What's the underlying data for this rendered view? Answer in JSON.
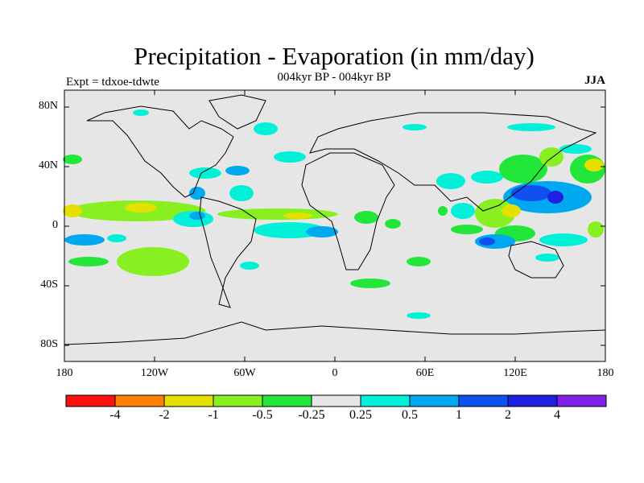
{
  "header": {
    "title": "Precipitation - Evaporation (in mm/day)",
    "subtitle": "004kyr BP - 004kyr BP",
    "expt": "Expt = tdxoe-tdwte",
    "season": "JJA"
  },
  "map": {
    "background": "#e6e6e6",
    "coastline_color": "#000000",
    "lat_labels": [
      "80N",
      "40N",
      "0",
      "40S",
      "80S"
    ],
    "lon_labels": [
      "180",
      "120W",
      "60W",
      "0",
      "60E",
      "120E",
      "180"
    ]
  },
  "colorbar": {
    "colors": [
      "#ff1010",
      "#ff8000",
      "#e6e000",
      "#88f020",
      "#22e63a",
      "#e6e6e6",
      "#00f0d8",
      "#00a8f0",
      "#1050f0",
      "#2020e0",
      "#8020e8"
    ],
    "labels": [
      "-4",
      "-2",
      "-1",
      "-0.5",
      "-0.25",
      "0.25",
      "0.5",
      "1",
      "2",
      "4"
    ]
  }
}
